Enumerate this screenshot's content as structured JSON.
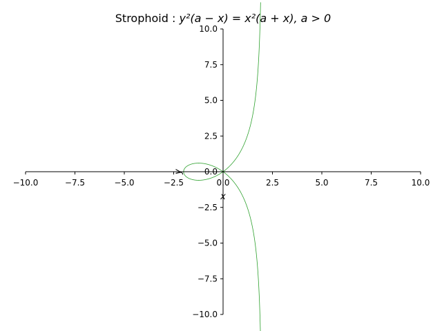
{
  "chart_data": {
    "type": "line",
    "title_prefix": "Strophoid : ",
    "title_math": "y²(a − x) = x²(a + x), a > 0",
    "xlabel": "x",
    "ylabel": "y",
    "xlim": [
      -10,
      10
    ],
    "ylim": [
      -10,
      10
    ],
    "grid": false,
    "x_ticks": [
      -10,
      -7.5,
      -5,
      -2.5,
      0,
      2.5,
      5,
      7.5,
      10
    ],
    "x_tick_labels": [
      "−10.0",
      "−7.5",
      "−5.0",
      "−2.5",
      "0.0",
      "2.5",
      "5.0",
      "7.5",
      "10.0"
    ],
    "y_ticks": [
      -10,
      -7.5,
      -5,
      -2.5,
      0,
      2.5,
      5,
      7.5,
      10
    ],
    "y_tick_labels": [
      "−10.0",
      "−7.5",
      "−5.0",
      "−2.5",
      "0.0",
      "2.5",
      "5.0",
      "7.5",
      "10.0"
    ],
    "series": [
      {
        "name": "strophoid",
        "a": 2,
        "color": "#2ca02c",
        "x_range": [
          -2,
          1.9
        ]
      }
    ]
  }
}
